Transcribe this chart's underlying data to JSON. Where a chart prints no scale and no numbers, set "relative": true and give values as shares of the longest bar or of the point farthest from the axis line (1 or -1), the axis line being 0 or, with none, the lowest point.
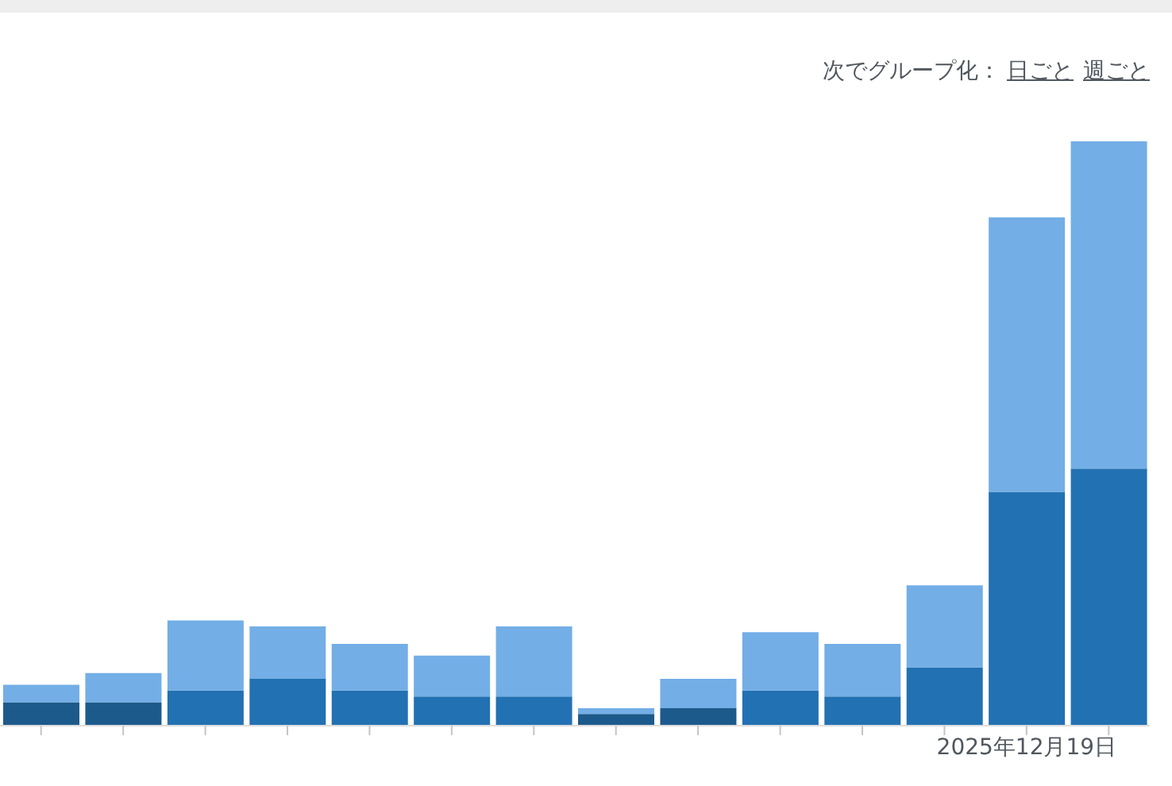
{
  "chart_data": {
    "type": "bar",
    "relative": true,
    "stacked": true,
    "legend": false,
    "annotations": [
      "次でグループ化：",
      "日ごと",
      "週ごと"
    ],
    "categories": [
      null,
      null,
      null,
      null,
      null,
      null,
      null,
      null,
      null,
      null,
      null,
      null,
      "2025年12月19日",
      null
    ],
    "series": [
      {
        "color": "#2271b3",
        "colors": [
          "#1d5a8c",
          "#1d5a8c",
          "#2271b3",
          "#2271b3",
          "#2271b3",
          "#2271b3",
          "#2271b3",
          "#1d5a8c",
          "#1d5a8c",
          "#2271b3",
          "#2271b3",
          "#2271b3",
          "#2271b3",
          "#2271b3"
        ],
        "values": [
          0.04,
          0.04,
          0.06,
          0.08,
          0.06,
          0.05,
          0.05,
          0.02,
          0.03,
          0.06,
          0.05,
          0.1,
          0.4,
          0.44
        ]
      },
      {
        "color": "#73aee6",
        "values": [
          0.03,
          0.05,
          0.12,
          0.09,
          0.08,
          0.07,
          0.12,
          0.01,
          0.05,
          0.1,
          0.09,
          0.14,
          0.47,
          0.56
        ]
      }
    ]
  }
}
